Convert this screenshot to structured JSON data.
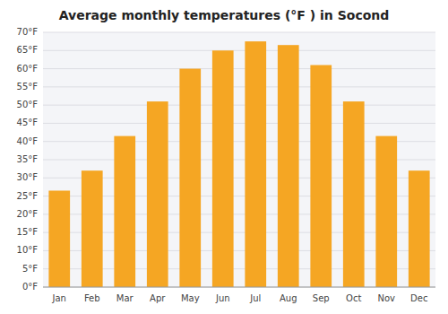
{
  "chart_data": {
    "type": "bar",
    "title": "Average monthly temperatures (°F ) in Socond",
    "categories": [
      "Jan",
      "Feb",
      "Mar",
      "Apr",
      "May",
      "Jun",
      "Jul",
      "Aug",
      "Sep",
      "Oct",
      "Nov",
      "Dec"
    ],
    "values": [
      26.5,
      32,
      41.5,
      51,
      60,
      65,
      67.5,
      66.5,
      61,
      51,
      41.5,
      32
    ],
    "color": "#F5A623",
    "ylim": [
      0,
      70
    ],
    "yticks": [
      {
        "value": 0,
        "label": "0°F"
      },
      {
        "value": 5,
        "label": "5°F"
      },
      {
        "value": 10,
        "label": "10°F"
      },
      {
        "value": 15,
        "label": "15°F"
      },
      {
        "value": 20,
        "label": "20°F"
      },
      {
        "value": 25,
        "label": "25°F"
      },
      {
        "value": 30,
        "label": "30°F"
      },
      {
        "value": 35,
        "label": "35°F"
      },
      {
        "value": 40,
        "label": "40°F"
      },
      {
        "value": 45,
        "label": "45°F"
      },
      {
        "value": 50,
        "label": "50°F"
      },
      {
        "value": 55,
        "label": "55°F"
      },
      {
        "value": 60,
        "label": "60°F"
      },
      {
        "value": 65,
        "label": "65°F"
      },
      {
        "value": 70,
        "label": "70°F"
      }
    ],
    "grid": true
  }
}
